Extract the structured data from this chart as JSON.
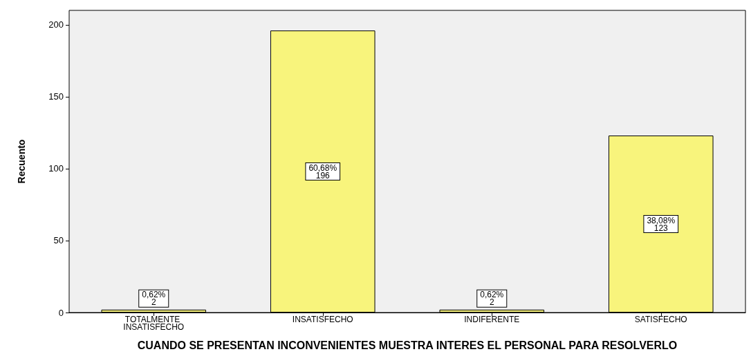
{
  "chart_data": {
    "type": "bar",
    "xlabel": "CUANDO SE PRESENTAN INCONVENIENTES MUESTRA INTERES EL PERSONAL PARA RESOLVERLO",
    "ylabel": "Recuento",
    "categories": [
      "TOTALMENTE INSATISFECHO",
      "INSATISFECHO",
      "INDIFERENTE",
      "SATISFECHO"
    ],
    "values": [
      2,
      196,
      2,
      123
    ],
    "color": "#f8f47c",
    "value_labels": [
      "0,62%\n2",
      "60,68%\n196",
      "0,62%\n2",
      "38,08%\n123"
    ],
    "ylim": [
      0,
      210
    ],
    "yticks": [
      0,
      50,
      100,
      150,
      200
    ],
    "grid": false
  }
}
